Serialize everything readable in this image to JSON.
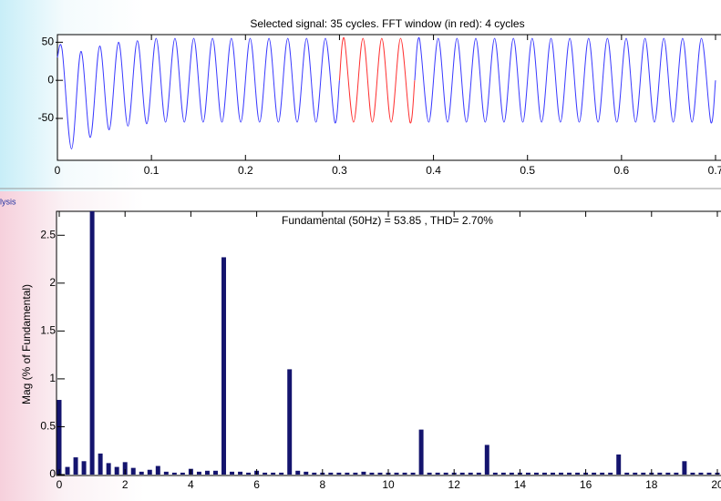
{
  "fragment": "lysis",
  "chart_data": [
    {
      "type": "line",
      "title": "Selected signal: 35 cycles. FFT window (in red): 4 cycles",
      "x": [
        0,
        0.005,
        0.015,
        0.025,
        0.035,
        0.045,
        0.055,
        0.065,
        0.075,
        0.085,
        0.095,
        0.105,
        0.115,
        0.125,
        0.135,
        0.145,
        0.155,
        0.165,
        0.175,
        0.185,
        0.195,
        0.205,
        0.215,
        0.225,
        0.235,
        0.245,
        0.255,
        0.265,
        0.275,
        0.285,
        0.295,
        0.3,
        0.305,
        0.315,
        0.325,
        0.335,
        0.345,
        0.355,
        0.365,
        0.375,
        0.38,
        0.385,
        0.395,
        0.405,
        0.415,
        0.425,
        0.435,
        0.445,
        0.455,
        0.465,
        0.475,
        0.485,
        0.495,
        0.505,
        0.515,
        0.525,
        0.535,
        0.545,
        0.555,
        0.565,
        0.575,
        0.585,
        0.595,
        0.605,
        0.615,
        0.625,
        0.635,
        0.645,
        0.655,
        0.665,
        0.675,
        0.685,
        0.695,
        0.7
      ],
      "series": [
        {
          "name": "signal",
          "color": "#3a3aff",
          "values": [
            30,
            40,
            -90,
            38,
            -75,
            45,
            -65,
            50,
            -60,
            52,
            -57,
            55,
            -55,
            55,
            -55,
            55,
            -55,
            55,
            -55,
            55,
            -55,
            55,
            -55,
            55,
            -55,
            55,
            -55,
            55,
            -55,
            55,
            -55,
            0,
            null,
            null,
            null,
            null,
            null,
            null,
            null,
            null,
            0,
            55,
            -55,
            55,
            -55,
            55,
            -55,
            55,
            -55,
            55,
            -55,
            55,
            -55,
            55,
            -55,
            55,
            -55,
            55,
            -55,
            55,
            -55,
            55,
            -55,
            55,
            -55,
            55,
            -55,
            55,
            -55,
            55,
            -55,
            55,
            -55,
            0
          ]
        },
        {
          "name": "FFT window",
          "color": "#ff3030",
          "values": [
            null,
            null,
            null,
            null,
            null,
            null,
            null,
            null,
            null,
            null,
            null,
            null,
            null,
            null,
            null,
            null,
            null,
            null,
            null,
            null,
            null,
            null,
            null,
            null,
            null,
            null,
            null,
            null,
            null,
            null,
            null,
            0,
            55,
            -55,
            55,
            -55,
            55,
            -55,
            55,
            -55,
            0,
            null,
            null,
            null,
            null,
            null,
            null,
            null,
            null,
            null,
            null,
            null,
            null,
            null,
            null,
            null,
            null,
            null,
            null,
            null,
            null,
            null,
            null,
            null,
            null,
            null,
            null,
            null,
            null,
            null,
            null,
            null,
            null,
            null
          ]
        }
      ],
      "xlim": [
        0,
        0.7
      ],
      "xticks": [
        0,
        0.1,
        0.2,
        0.3,
        0.4,
        0.5,
        0.6,
        0.7
      ],
      "ylim": [
        -105,
        60
      ],
      "yticks": [
        -50,
        0,
        50
      ]
    },
    {
      "type": "bar",
      "title": "Fundamental (50Hz) = 53.85 , THD= 2.70%",
      "ylabel": "Mag (% of Fundamental)",
      "color": "#14146e",
      "x": [
        0,
        0.25,
        0.5,
        0.75,
        1,
        1.25,
        1.5,
        1.75,
        2,
        2.25,
        2.5,
        2.75,
        3,
        3.25,
        3.5,
        3.75,
        4,
        4.25,
        4.5,
        4.75,
        5,
        5.25,
        5.5,
        5.75,
        6,
        6.25,
        6.5,
        6.75,
        7,
        7.25,
        7.5,
        7.75,
        8,
        8.25,
        8.5,
        8.75,
        9,
        9.25,
        9.5,
        9.75,
        10,
        10.25,
        10.5,
        10.75,
        11,
        11.25,
        11.5,
        11.75,
        12,
        12.25,
        12.5,
        12.75,
        13,
        13.25,
        13.5,
        13.75,
        14,
        14.25,
        14.5,
        14.75,
        15,
        15.25,
        15.5,
        15.75,
        16,
        16.25,
        16.5,
        16.75,
        17,
        17.25,
        17.5,
        17.75,
        18,
        18.25,
        18.5,
        18.75,
        19,
        19.25,
        19.5,
        19.75,
        20
      ],
      "values": [
        0.78,
        0.08,
        0.18,
        0.14,
        2.75,
        0.22,
        0.12,
        0.08,
        0.13,
        0.07,
        0.03,
        0.05,
        0.09,
        0.03,
        0.02,
        0.02,
        0.06,
        0.03,
        0.04,
        0.04,
        2.27,
        0.03,
        0.03,
        0.02,
        0.04,
        0.02,
        0.02,
        0.02,
        1.1,
        0.04,
        0.03,
        0.02,
        0.02,
        0.02,
        0.02,
        0.02,
        0.02,
        0.03,
        0.02,
        0.02,
        0.02,
        0.02,
        0.02,
        0.02,
        0.47,
        0.02,
        0.02,
        0.02,
        0.02,
        0.02,
        0.02,
        0.02,
        0.31,
        0.02,
        0.02,
        0.02,
        0.02,
        0.02,
        0.02,
        0.02,
        0.02,
        0.02,
        0.02,
        0.02,
        0.02,
        0.02,
        0.02,
        0.02,
        0.21,
        0.02,
        0.02,
        0.02,
        0.02,
        0.02,
        0.02,
        0.02,
        0.14,
        0.02,
        0.02,
        0.02,
        0.02
      ],
      "xlim": [
        0,
        20
      ],
      "xticks": [
        0,
        2,
        4,
        6,
        8,
        10,
        12,
        14,
        16,
        18,
        20
      ],
      "ylim": [
        0,
        2.75
      ],
      "yticks": [
        0,
        0.5,
        1,
        1.5,
        2,
        2.5
      ]
    }
  ]
}
